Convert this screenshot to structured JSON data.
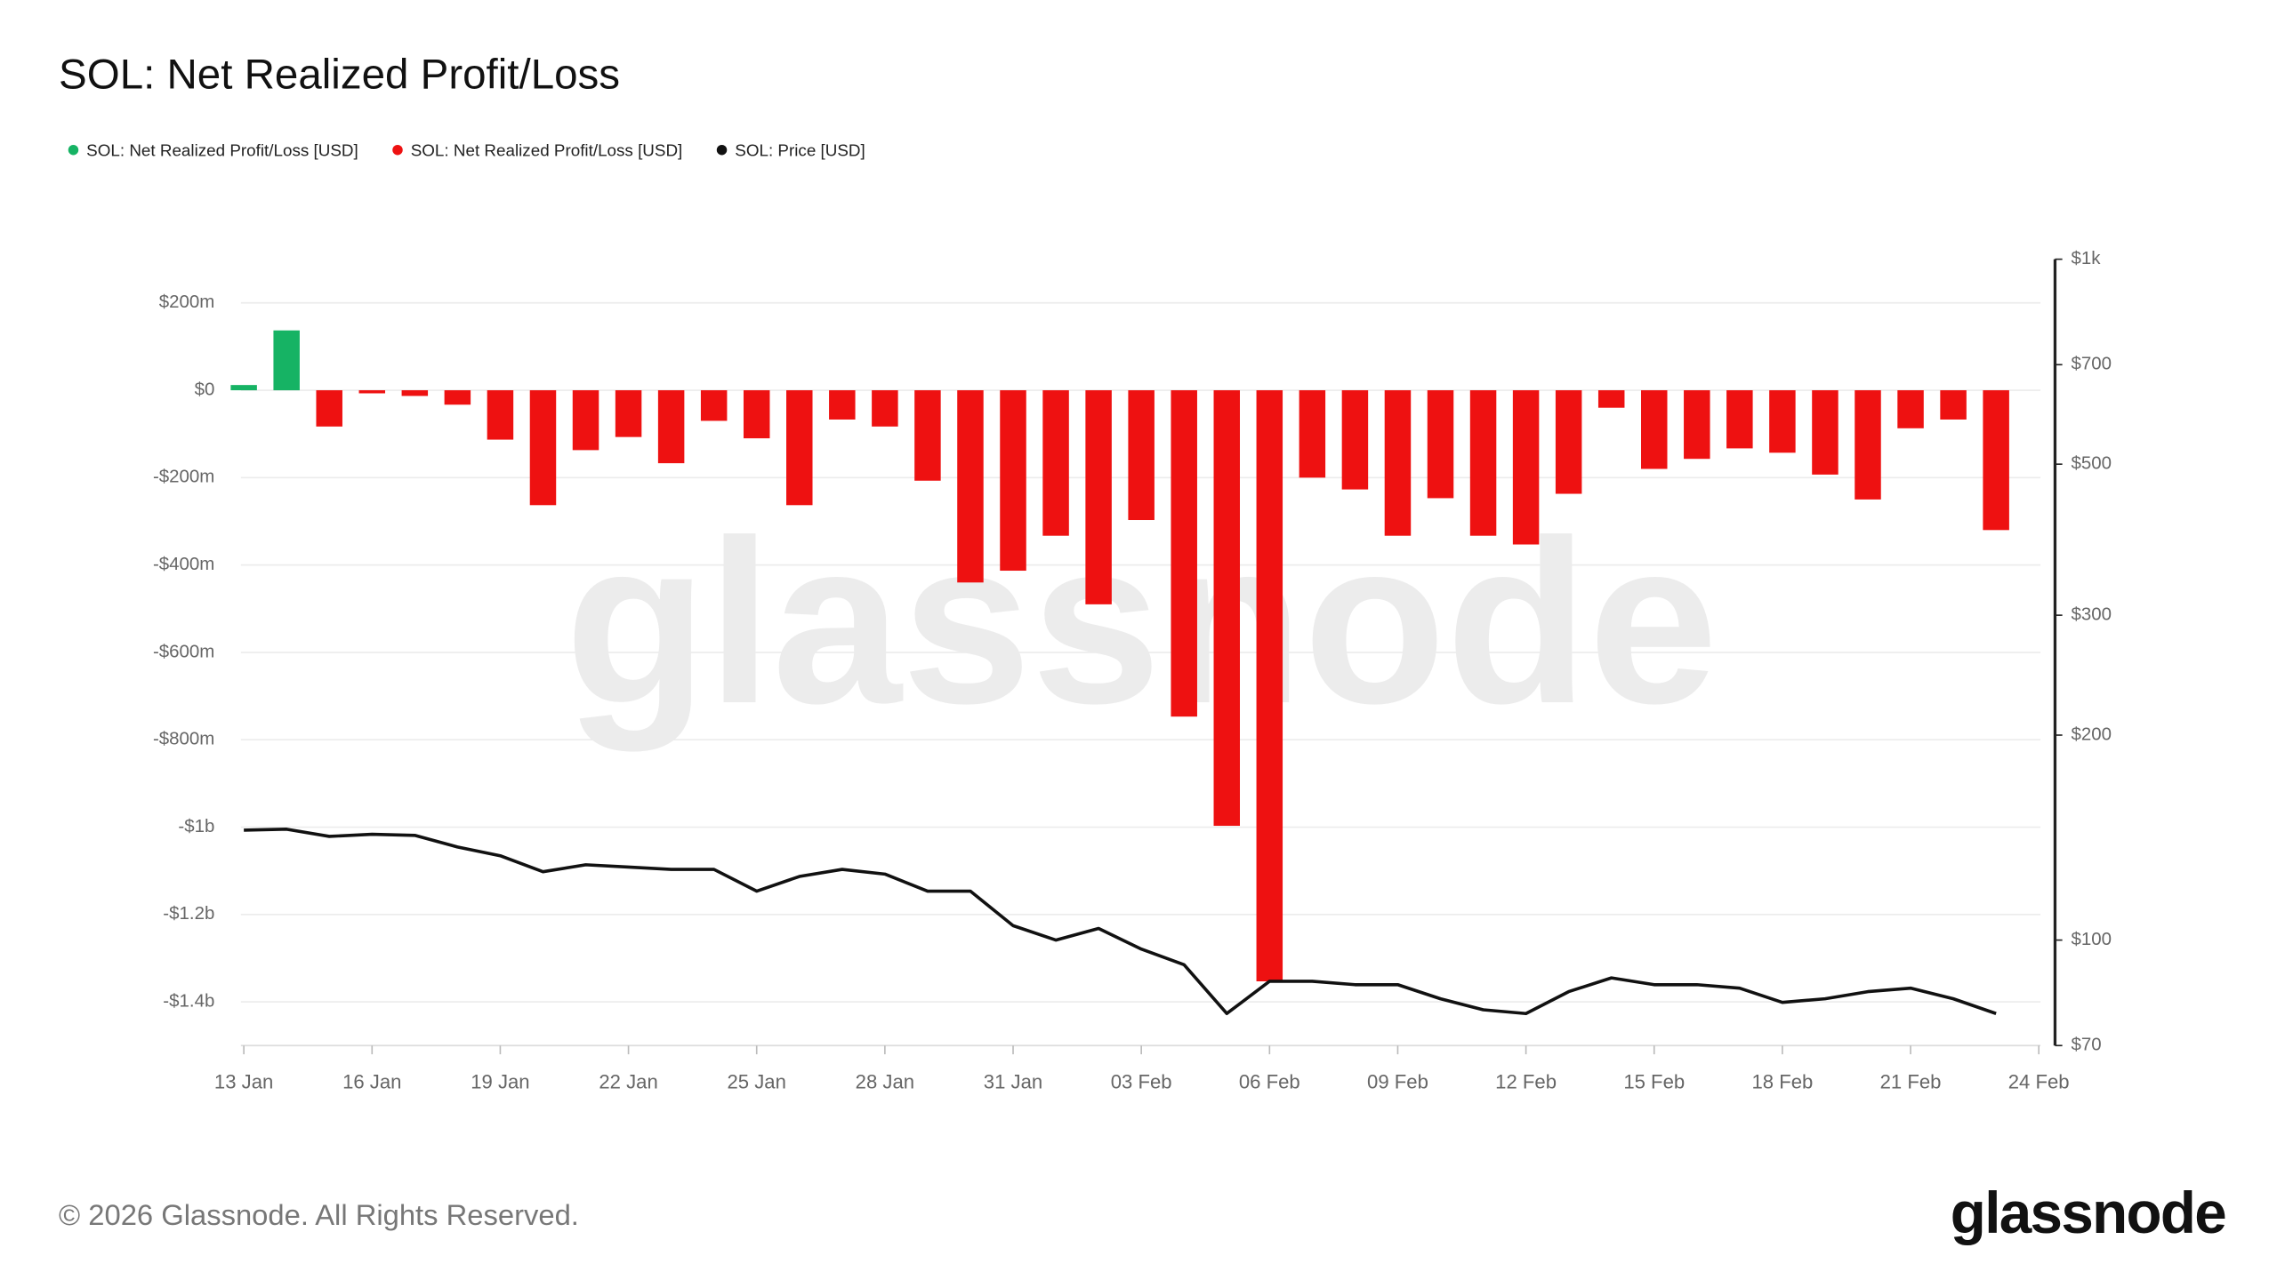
{
  "title": "SOL: Net Realized Profit/Loss",
  "footer": "© 2026 Glassnode. All Rights Reserved.",
  "logo": "glassnode",
  "chart_data": {
    "type": "bar",
    "watermark": "glassnode",
    "x_labels": [
      "13 Jan",
      "16 Jan",
      "19 Jan",
      "22 Jan",
      "25 Jan",
      "28 Jan",
      "31 Jan",
      "03 Feb",
      "06 Feb",
      "09 Feb",
      "12 Feb",
      "15 Feb",
      "18 Feb",
      "21 Feb",
      "24 Feb"
    ],
    "series": [
      {
        "name": "SOL: Net Realized Profit/Loss [USD]",
        "color": "#16b364",
        "type": "bar",
        "values": [
          12,
          137,
          null,
          null,
          null,
          null,
          null,
          null,
          null,
          null,
          null,
          null,
          null,
          null,
          null,
          null,
          null,
          null,
          null,
          null,
          null,
          null,
          null,
          null,
          null,
          null,
          null,
          null,
          null,
          null,
          null,
          null,
          null,
          null,
          null,
          null,
          null,
          null,
          null,
          null,
          null,
          null
        ]
      },
      {
        "name": "SOL: Net Realized Profit/Loss [USD]",
        "color": "#ee1111",
        "type": "bar",
        "values": [
          null,
          null,
          -83,
          -7,
          -13,
          -33,
          -113,
          -263,
          -137,
          -107,
          -167,
          -70,
          -110,
          -263,
          -67,
          -83,
          -207,
          -440,
          -413,
          -333,
          -490,
          -297,
          -747,
          -997,
          -1353,
          -200,
          -227,
          -333,
          -247,
          -333,
          -353,
          -237,
          -40,
          -180,
          -157,
          -133,
          -143,
          -193,
          -250,
          -87,
          -67,
          -320
        ]
      },
      {
        "name": "SOL: Price [USD]",
        "color": "#111111",
        "type": "line",
        "axis": "y2",
        "values": [
          145,
          145.5,
          142,
          143,
          142.5,
          137,
          133,
          126,
          129,
          128,
          127,
          127,
          118,
          124,
          127,
          125,
          118,
          118,
          105,
          100,
          104,
          97,
          92,
          78,
          87,
          87,
          86,
          86,
          82,
          79,
          78,
          84,
          88,
          86,
          86,
          85,
          81,
          82,
          84,
          85,
          82,
          78
        ]
      }
    ],
    "ylim": [
      -1500,
      300
    ],
    "yticks": [
      {
        "value": 200,
        "label": "$200m"
      },
      {
        "value": 0,
        "label": "$0"
      },
      {
        "value": -200,
        "label": "-$200m"
      },
      {
        "value": -400,
        "label": "-$400m"
      },
      {
        "value": -600,
        "label": "-$600m"
      },
      {
        "value": -800,
        "label": "-$800m"
      },
      {
        "value": -1000,
        "label": "-$1b"
      },
      {
        "value": -1200,
        "label": "-$1.2b"
      },
      {
        "value": -1400,
        "label": "-$1.4b"
      }
    ],
    "y2lim": [
      70,
      1000
    ],
    "y2_log": true,
    "y2ticks": [
      {
        "value": 70,
        "label": "$70"
      },
      {
        "value": 100,
        "label": "$100"
      },
      {
        "value": 200,
        "label": "$200"
      },
      {
        "value": 300,
        "label": "$300"
      },
      {
        "value": 500,
        "label": "$500"
      },
      {
        "value": 700,
        "label": "$700"
      },
      {
        "value": 1000,
        "label": "$1k"
      }
    ],
    "grid": true
  }
}
